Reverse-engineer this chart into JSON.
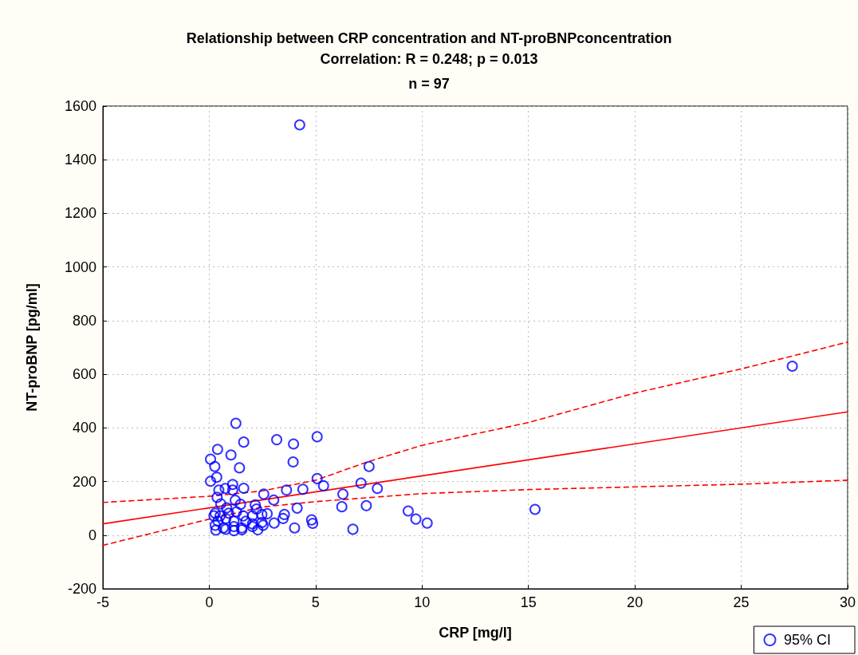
{
  "chart_data": {
    "type": "scatter",
    "title": "Relationship between CRP concentration and NT-proBNPconcentration",
    "subtitle": "Correlation: R = 0.248; p = 0.013",
    "annotations": [
      "n = 97"
    ],
    "xlabel": "CRP [mg/l]",
    "ylabel": "NT-proBNP [pg/ml]",
    "xlim": [
      -5,
      30
    ],
    "xticks": [
      -5,
      0,
      5,
      10,
      15,
      20,
      25,
      30
    ],
    "ylim": [
      -200,
      1600
    ],
    "yticks": [
      -200,
      0,
      200,
      400,
      600,
      800,
      1000,
      1200,
      1400,
      1600
    ],
    "grid": true,
    "legend": "bottom right",
    "series": [
      {
        "name": "95% CI",
        "marker": "circle",
        "color": "#0000ff",
        "x": [
          1.25,
          1.62,
          0.39,
          1.02,
          0.06,
          0.26,
          1.42,
          0.35,
          0.06,
          3.17,
          3.96,
          5.07,
          3.94,
          5.07,
          5.37,
          3.63,
          4.4,
          2.56,
          3.03,
          4.13,
          4.01,
          4.81,
          4.86,
          3.53,
          3.47,
          3.05,
          1.1,
          1.1,
          0.75,
          1.62,
          0.45,
          0.37,
          1.22,
          1.47,
          2.16,
          0.54,
          0.82,
          2.22,
          0.28,
          0.22,
          0.51,
          0.91,
          1.28,
          1.6,
          2.03,
          2.47,
          2.72,
          0.41,
          0.78,
          1.16,
          1.72,
          2.03,
          2.47,
          0.28,
          0.66,
          1.16,
          1.53,
          2.03,
          2.53,
          0.31,
          0.78,
          1.16,
          1.53,
          2.28,
          7.51,
          7.13,
          7.9,
          6.28,
          6.23,
          7.38,
          9.35,
          9.71,
          10.24,
          6.75,
          15.31,
          4.25,
          27.4
        ],
        "values": [
          417,
          347,
          320,
          299,
          283,
          256,
          251,
          216,
          201,
          356,
          340,
          367,
          273,
          211,
          184,
          168,
          171,
          153,
          131,
          101,
          27,
          57,
          44,
          77,
          62,
          45,
          189,
          168,
          174,
          175,
          168,
          141,
          130,
          115,
          113,
          117,
          102,
          97,
          82,
          72,
          72,
          82,
          87,
          72,
          72,
          77,
          80,
          52,
          62,
          52,
          52,
          42,
          47,
          37,
          27,
          32,
          27,
          32,
          37,
          19,
          22,
          17,
          20,
          20,
          256,
          194,
          174,
          153,
          106,
          110,
          90,
          60,
          45,
          22,
          96,
          1530,
          630
        ]
      },
      {
        "type": "line",
        "marker": "none",
        "line_style": "solid",
        "color": "#ff0000",
        "x": [
          -5,
          30
        ],
        "values": [
          42,
          460
        ]
      },
      {
        "type": "line",
        "marker": "none",
        "line_style": "dashed",
        "color": "#ff0000",
        "x": [
          -5,
          0,
          2.5,
          5,
          7.5,
          10,
          15,
          20,
          25,
          30
        ],
        "values": [
          122,
          145,
          165,
          205,
          275,
          335,
          420,
          530,
          620,
          720
        ]
      },
      {
        "type": "line",
        "marker": "none",
        "line_style": "dashed",
        "color": "#ff0000",
        "x": [
          -5,
          0,
          2.5,
          5,
          7.5,
          10,
          15,
          20,
          25,
          30
        ],
        "values": [
          -38,
          60,
          105,
          125,
          140,
          155,
          170,
          180,
          190,
          205
        ]
      }
    ]
  }
}
